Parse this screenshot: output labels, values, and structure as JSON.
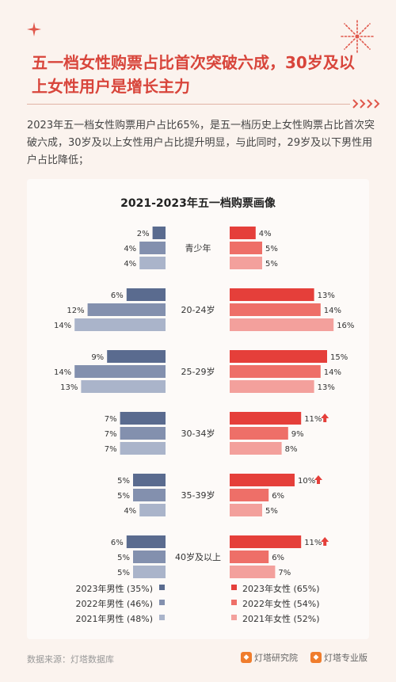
{
  "header": {
    "title": "五一档女性购票占比首次突破六成，30岁及以上女性用户是增长主力",
    "intro": "2023年五一档女性购票用户占比65%，是五一档历史上女性购票占比首次突破六成，30岁及以上女性用户占比提升明显，与此同时，29岁及以下男性用户占比降低；"
  },
  "chart_data": {
    "type": "bar",
    "orientation": "horizontal-butterfly",
    "title": "2021-2023年五一档购票画像",
    "categories": [
      "青少年",
      "20-24岁",
      "25-29岁",
      "30-34岁",
      "35-39岁",
      "40岁及以上"
    ],
    "unit": "%",
    "male_series": [
      {
        "name": "2023年男性 (35%)",
        "values": [
          2,
          6,
          9,
          7,
          5,
          6
        ],
        "color": "#5a6b8f"
      },
      {
        "name": "2022年男性 (46%)",
        "values": [
          4,
          12,
          14,
          7,
          5,
          5
        ],
        "color": "#8390ae"
      },
      {
        "name": "2021年男性 (48%)",
        "values": [
          4,
          14,
          13,
          7,
          4,
          5
        ],
        "color": "#aab4ca"
      }
    ],
    "female_series": [
      {
        "name": "2023年女性 (65%)",
        "values": [
          4,
          13,
          15,
          11,
          10,
          11
        ],
        "color": "#e53f3a"
      },
      {
        "name": "2022年女性 (54%)",
        "values": [
          5,
          14,
          14,
          9,
          6,
          6
        ],
        "color": "#ee6f68"
      },
      {
        "name": "2021年女性 (52%)",
        "values": [
          5,
          16,
          13,
          8,
          5,
          7
        ],
        "color": "#f3a09c"
      }
    ],
    "highlight_up": [
      false,
      false,
      false,
      true,
      true,
      true
    ],
    "up_arrow_color": "#e53f3a",
    "legend_position": "bottom"
  },
  "footer": {
    "source": "数据来源：灯塔数据库",
    "brand1": "灯塔研究院",
    "brand2": "灯塔专业版"
  }
}
